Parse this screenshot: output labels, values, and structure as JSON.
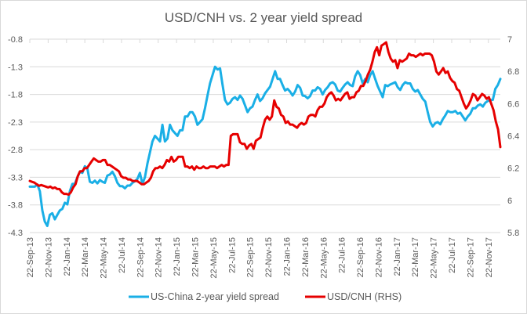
{
  "chart_data": {
    "type": "line",
    "title": "USD/CNH vs. 2 year yield spread",
    "xlabel": "",
    "ylabel": "",
    "y_left": {
      "ticks": [
        "-0.8",
        "-1.3",
        "-1.8",
        "-2.3",
        "-2.8",
        "-3.3",
        "-3.8",
        "-4.3"
      ],
      "range": [
        -4.3,
        -0.8
      ]
    },
    "y_right": {
      "ticks": [
        "7",
        "6.8",
        "6.6",
        "6.4",
        "6.2",
        "6",
        "5.8"
      ],
      "range": [
        5.8,
        7
      ]
    },
    "x_tick_labels": [
      "22-Sep-13",
      "22-Nov-13",
      "22-Jan-14",
      "22-Mar-14",
      "22-May-14",
      "22-Jul-14",
      "22-Sep-14",
      "22-Nov-14",
      "22-Jan-15",
      "22-Mar-15",
      "22-May-15",
      "22-Jul-15",
      "22-Sep-15",
      "22-Nov-15",
      "22-Jan-16",
      "22-Mar-16",
      "22-May-16",
      "22-Jul-16",
      "22-Sep-16",
      "22-Nov-16",
      "22-Jan-17",
      "22-Mar-17",
      "22-May-17",
      "22-Jul-17",
      "22-Sep-17",
      "22-Nov-17"
    ],
    "grid": true,
    "legend_position": "bottom",
    "series": [
      {
        "name": "US-China 2-year yield spread",
        "axis": "left",
        "color": "#1aafe6",
        "values": [
          -3.47,
          -3.47,
          -3.47,
          -3.43,
          -3.55,
          -3.9,
          -4.1,
          -4.18,
          -3.98,
          -3.95,
          -4.06,
          -3.98,
          -3.9,
          -3.87,
          -3.76,
          -3.79,
          -3.55,
          -3.42,
          -3.42,
          -3.3,
          -3.2,
          -3.22,
          -3.1,
          -3.14,
          -3.38,
          -3.4,
          -3.36,
          -3.41,
          -3.35,
          -3.38,
          -3.4,
          -3.27,
          -3.25,
          -3.2,
          -3.28,
          -3.4,
          -3.46,
          -3.46,
          -3.5,
          -3.45,
          -3.45,
          -3.4,
          -3.37,
          -3.33,
          -3.22,
          -3.42,
          -3.3,
          -3.05,
          -2.85,
          -2.65,
          -2.55,
          -2.6,
          -2.65,
          -2.35,
          -2.65,
          -2.6,
          -2.35,
          -2.45,
          -2.5,
          -2.55,
          -2.45,
          -2.45,
          -2.2,
          -2.2,
          -2.12,
          -2.12,
          -2.2,
          -2.35,
          -2.3,
          -2.25,
          -2.05,
          -1.82,
          -1.6,
          -1.45,
          -1.3,
          -1.35,
          -1.33,
          -1.62,
          -1.9,
          -1.98,
          -1.95,
          -1.88,
          -1.85,
          -1.9,
          -1.82,
          -1.88,
          -2.0,
          -2.12,
          -2.05,
          -2.02,
          -1.9,
          -1.8,
          -1.92,
          -1.87,
          -1.78,
          -1.72,
          -1.66,
          -1.52,
          -1.38,
          -1.52,
          -1.52,
          -1.63,
          -1.73,
          -1.7,
          -1.75,
          -1.82,
          -1.75,
          -1.63,
          -1.68,
          -1.82,
          -1.83,
          -1.87,
          -1.83,
          -1.73,
          -1.73,
          -1.67,
          -1.7,
          -1.8,
          -1.72,
          -1.67,
          -1.6,
          -1.58,
          -1.62,
          -1.73,
          -1.75,
          -1.68,
          -1.62,
          -1.58,
          -1.63,
          -1.65,
          -1.47,
          -1.38,
          -1.45,
          -1.6,
          -1.52,
          -1.58,
          -1.45,
          -1.38,
          -1.52,
          -1.65,
          -1.75,
          -1.85,
          -1.63,
          -1.65,
          -1.62,
          -1.6,
          -1.58,
          -1.67,
          -1.72,
          -1.63,
          -1.58,
          -1.6,
          -1.6,
          -1.7,
          -1.75,
          -1.72,
          -1.8,
          -1.88,
          -1.93,
          -2.12,
          -2.3,
          -2.38,
          -2.32,
          -2.3,
          -2.34,
          -2.25,
          -2.18,
          -2.1,
          -2.12,
          -2.12,
          -2.1,
          -2.15,
          -2.13,
          -2.2,
          -2.27,
          -2.2,
          -2.15,
          -2.05,
          -2.05,
          -2.0,
          -1.98,
          -2.02,
          -1.95,
          -1.92,
          -1.9,
          -1.9,
          -1.7,
          -1.63,
          -1.52
        ]
      },
      {
        "name": "USD/CNH (RHS)",
        "axis": "right",
        "color": "#e60000",
        "values": [
          6.12,
          6.115,
          6.11,
          6.1,
          6.09,
          6.095,
          6.09,
          6.085,
          6.08,
          6.085,
          6.075,
          6.08,
          6.07,
          6.07,
          6.05,
          6.04,
          6.04,
          6.035,
          6.05,
          6.08,
          6.1,
          6.15,
          6.18,
          6.18,
          6.2,
          6.2,
          6.22,
          6.24,
          6.26,
          6.25,
          6.24,
          6.24,
          6.25,
          6.25,
          6.22,
          6.22,
          6.21,
          6.2,
          6.19,
          6.18,
          6.15,
          6.14,
          6.14,
          6.13,
          6.13,
          6.12,
          6.12,
          6.12,
          6.11,
          6.1,
          6.1,
          6.11,
          6.12,
          6.14,
          6.18,
          6.2,
          6.2,
          6.21,
          6.2,
          6.22,
          6.25,
          6.24,
          6.27,
          6.24,
          6.25,
          6.27,
          6.27,
          6.27,
          6.21,
          6.21,
          6.2,
          6.21,
          6.19,
          6.21,
          6.2,
          6.2,
          6.21,
          6.2,
          6.2,
          6.21,
          6.21,
          6.21,
          6.2,
          6.21,
          6.22,
          6.21,
          6.22,
          6.22,
          6.4,
          6.41,
          6.41,
          6.41,
          6.36,
          6.35,
          6.35,
          6.32,
          6.34,
          6.35,
          6.32,
          6.37,
          6.38,
          6.39,
          6.45,
          6.5,
          6.52,
          6.5,
          6.52,
          6.62,
          6.58,
          6.57,
          6.53,
          6.52,
          6.48,
          6.49,
          6.47,
          6.47,
          6.46,
          6.45,
          6.47,
          6.48,
          6.47,
          6.48,
          6.52,
          6.53,
          6.53,
          6.52,
          6.56,
          6.58,
          6.58,
          6.6,
          6.64,
          6.66,
          6.67,
          6.65,
          6.62,
          6.63,
          6.62,
          6.64,
          6.66,
          6.67,
          6.63,
          6.64,
          6.64,
          6.67,
          6.68,
          6.71,
          6.71,
          6.74,
          6.78,
          6.81,
          6.86,
          6.92,
          6.95,
          6.9,
          6.96,
          6.97,
          6.98,
          6.92,
          6.88,
          6.86,
          6.87,
          6.82,
          6.87,
          6.86,
          6.87,
          6.88,
          6.91,
          6.9,
          6.9,
          6.89,
          6.9,
          6.91,
          6.9,
          6.91,
          6.91,
          6.91,
          6.9,
          6.86,
          6.8,
          6.78,
          6.8,
          6.82,
          6.79,
          6.8,
          6.76,
          6.74,
          6.73,
          6.69,
          6.68,
          6.64,
          6.6,
          6.57,
          6.59,
          6.62,
          6.66,
          6.65,
          6.62,
          6.64,
          6.66,
          6.65,
          6.63,
          6.64,
          6.6,
          6.56,
          6.49,
          6.44,
          6.33
        ]
      }
    ]
  }
}
